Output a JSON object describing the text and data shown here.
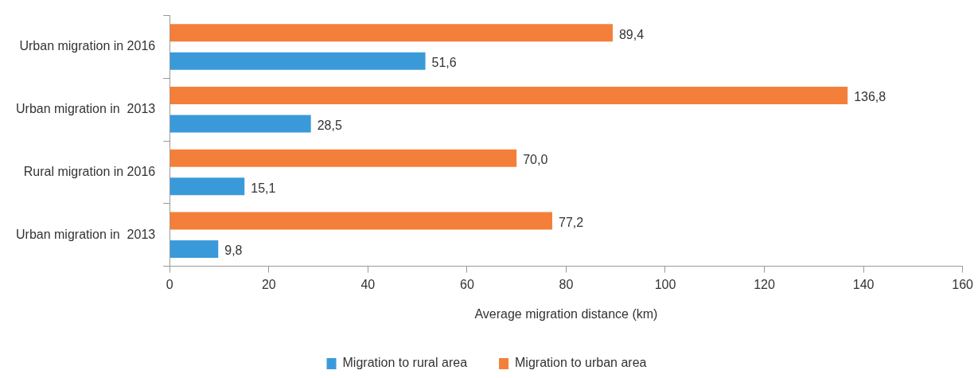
{
  "chart_data": {
    "type": "bar",
    "orientation": "horizontal",
    "xlabel": "Average migration distance (km)",
    "categories": [
      "Urban migration in 2016",
      "Urban migration in  2013",
      "Rural migration in 2016",
      "Urban migration in  2013"
    ],
    "series": [
      {
        "name": "Migration to rural area",
        "color": "#3a9ad9",
        "values": [
          51.6,
          28.5,
          15.1,
          9.8
        ],
        "value_labels": [
          "51,6",
          "28,5",
          "15,1",
          "9,8"
        ]
      },
      {
        "name": "Migration to urban area",
        "color": "#f47f3a",
        "values": [
          89.4,
          136.8,
          70.0,
          77.2
        ],
        "value_labels": [
          "89,4",
          "136,8",
          "70,0",
          "77,2"
        ]
      }
    ],
    "xlim": [
      0,
      160
    ],
    "xticks": [
      0,
      20,
      40,
      60,
      80,
      100,
      120,
      140,
      160
    ],
    "grid": false,
    "legend": "bottom"
  }
}
